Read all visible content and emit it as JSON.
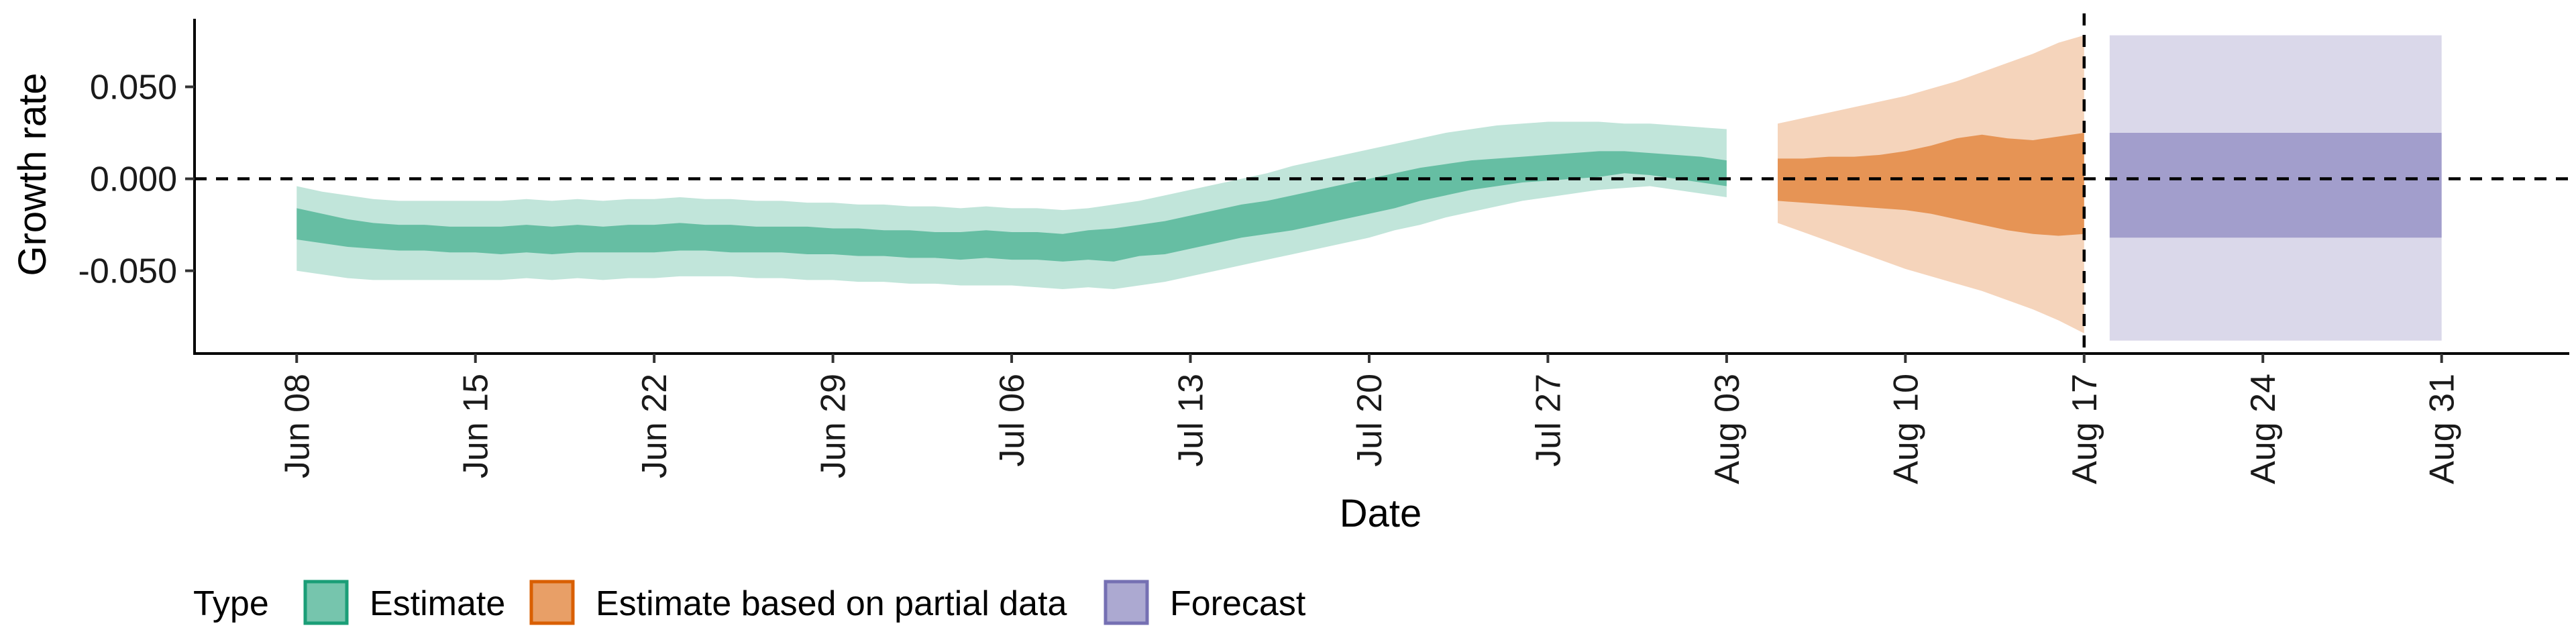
{
  "chart_data": {
    "type": "area",
    "xlabel": "Date",
    "ylabel": "Growth rate",
    "x_ticks": [
      "Jun 08",
      "Jun 15",
      "Jun 22",
      "Jun 29",
      "Jul 06",
      "Jul 13",
      "Jul 20",
      "Jul 27",
      "Aug 03",
      "Aug 10",
      "Aug 17",
      "Aug 24",
      "Aug 31"
    ],
    "y_ticks": [
      "0.050",
      "0.000",
      "-0.050"
    ],
    "y_tick_values": [
      0.05,
      0.0,
      -0.05
    ],
    "ylim": [
      -0.095,
      0.087
    ],
    "xlim": [
      "2020-06-04",
      "2020-09-05"
    ],
    "hline": 0.0,
    "vline": "2020-08-17",
    "legend": {
      "title": "Type",
      "position": "bottom-left",
      "items": [
        {
          "label": "Estimate",
          "color": "#1b9e77"
        },
        {
          "label": "Estimate based on partial data",
          "color": "#d95f02"
        },
        {
          "label": "Forecast",
          "color": "#7570b3"
        }
      ]
    },
    "series": [
      {
        "name": "Estimate",
        "color": "#1b9e77",
        "x": [
          "2020-06-08",
          "2020-06-09",
          "2020-06-10",
          "2020-06-11",
          "2020-06-12",
          "2020-06-13",
          "2020-06-14",
          "2020-06-15",
          "2020-06-16",
          "2020-06-17",
          "2020-06-18",
          "2020-06-19",
          "2020-06-20",
          "2020-06-21",
          "2020-06-22",
          "2020-06-23",
          "2020-06-24",
          "2020-06-25",
          "2020-06-26",
          "2020-06-27",
          "2020-06-28",
          "2020-06-29",
          "2020-06-30",
          "2020-07-01",
          "2020-07-02",
          "2020-07-03",
          "2020-07-04",
          "2020-07-05",
          "2020-07-06",
          "2020-07-07",
          "2020-07-08",
          "2020-07-09",
          "2020-07-10",
          "2020-07-11",
          "2020-07-12",
          "2020-07-13",
          "2020-07-14",
          "2020-07-15",
          "2020-07-16",
          "2020-07-17",
          "2020-07-18",
          "2020-07-19",
          "2020-07-20",
          "2020-07-21",
          "2020-07-22",
          "2020-07-23",
          "2020-07-24",
          "2020-07-25",
          "2020-07-26",
          "2020-07-27",
          "2020-07-28",
          "2020-07-29",
          "2020-07-30",
          "2020-07-31",
          "2020-08-01",
          "2020-08-02",
          "2020-08-03"
        ],
        "lower90": [
          -0.05,
          -0.052,
          -0.054,
          -0.055,
          -0.055,
          -0.055,
          -0.055,
          -0.055,
          -0.055,
          -0.054,
          -0.055,
          -0.054,
          -0.055,
          -0.054,
          -0.054,
          -0.053,
          -0.053,
          -0.053,
          -0.054,
          -0.054,
          -0.055,
          -0.055,
          -0.056,
          -0.056,
          -0.057,
          -0.057,
          -0.058,
          -0.058,
          -0.058,
          -0.059,
          -0.06,
          -0.059,
          -0.06,
          -0.058,
          -0.056,
          -0.053,
          -0.05,
          -0.047,
          -0.044,
          -0.041,
          -0.038,
          -0.035,
          -0.032,
          -0.028,
          -0.025,
          -0.021,
          -0.018,
          -0.015,
          -0.012,
          -0.01,
          -0.008,
          -0.006,
          -0.005,
          -0.004,
          -0.006,
          -0.008,
          -0.01
        ],
        "lower50": [
          -0.033,
          -0.035,
          -0.037,
          -0.038,
          -0.039,
          -0.039,
          -0.04,
          -0.04,
          -0.041,
          -0.04,
          -0.041,
          -0.04,
          -0.04,
          -0.04,
          -0.04,
          -0.039,
          -0.039,
          -0.04,
          -0.04,
          -0.04,
          -0.041,
          -0.041,
          -0.042,
          -0.042,
          -0.043,
          -0.043,
          -0.044,
          -0.043,
          -0.044,
          -0.044,
          -0.045,
          -0.044,
          -0.045,
          -0.042,
          -0.041,
          -0.038,
          -0.035,
          -0.032,
          -0.03,
          -0.028,
          -0.025,
          -0.022,
          -0.019,
          -0.016,
          -0.012,
          -0.009,
          -0.006,
          -0.004,
          -0.002,
          -0.001,
          0.0,
          0.001,
          0.003,
          0.002,
          0.0,
          -0.002,
          -0.004
        ],
        "upper50": [
          -0.016,
          -0.019,
          -0.022,
          -0.024,
          -0.025,
          -0.025,
          -0.026,
          -0.026,
          -0.026,
          -0.025,
          -0.026,
          -0.025,
          -0.026,
          -0.025,
          -0.025,
          -0.024,
          -0.025,
          -0.025,
          -0.026,
          -0.026,
          -0.026,
          -0.027,
          -0.027,
          -0.028,
          -0.028,
          -0.029,
          -0.029,
          -0.028,
          -0.029,
          -0.029,
          -0.03,
          -0.028,
          -0.027,
          -0.025,
          -0.023,
          -0.02,
          -0.017,
          -0.014,
          -0.012,
          -0.009,
          -0.006,
          -0.003,
          0.0,
          0.003,
          0.006,
          0.008,
          0.01,
          0.011,
          0.012,
          0.013,
          0.014,
          0.015,
          0.015,
          0.014,
          0.013,
          0.012,
          0.01
        ],
        "upper90": [
          -0.004,
          -0.007,
          -0.009,
          -0.011,
          -0.012,
          -0.012,
          -0.012,
          -0.012,
          -0.012,
          -0.011,
          -0.012,
          -0.011,
          -0.012,
          -0.011,
          -0.011,
          -0.01,
          -0.011,
          -0.011,
          -0.012,
          -0.012,
          -0.013,
          -0.013,
          -0.014,
          -0.014,
          -0.015,
          -0.015,
          -0.016,
          -0.015,
          -0.016,
          -0.016,
          -0.017,
          -0.016,
          -0.014,
          -0.012,
          -0.009,
          -0.006,
          -0.003,
          0.0,
          0.003,
          0.007,
          0.01,
          0.013,
          0.016,
          0.019,
          0.022,
          0.025,
          0.027,
          0.029,
          0.03,
          0.031,
          0.031,
          0.031,
          0.03,
          0.03,
          0.029,
          0.028,
          0.027
        ]
      },
      {
        "name": "Estimate based on partial data",
        "color": "#d95f02",
        "x": [
          "2020-08-05",
          "2020-08-06",
          "2020-08-07",
          "2020-08-08",
          "2020-08-09",
          "2020-08-10",
          "2020-08-11",
          "2020-08-12",
          "2020-08-13",
          "2020-08-14",
          "2020-08-15",
          "2020-08-16",
          "2020-08-17"
        ],
        "lower90": [
          -0.024,
          -0.029,
          -0.034,
          -0.039,
          -0.044,
          -0.049,
          -0.053,
          -0.057,
          -0.061,
          -0.066,
          -0.071,
          -0.077,
          -0.084
        ],
        "lower50": [
          -0.012,
          -0.013,
          -0.014,
          -0.015,
          -0.016,
          -0.017,
          -0.019,
          -0.022,
          -0.025,
          -0.028,
          -0.03,
          -0.031,
          -0.03
        ],
        "upper50": [
          0.011,
          0.011,
          0.012,
          0.012,
          0.013,
          0.015,
          0.018,
          0.022,
          0.024,
          0.022,
          0.021,
          0.023,
          0.025
        ],
        "upper90": [
          0.03,
          0.033,
          0.036,
          0.039,
          0.042,
          0.045,
          0.049,
          0.053,
          0.058,
          0.063,
          0.068,
          0.074,
          0.078
        ]
      },
      {
        "name": "Forecast",
        "color": "#7570b3",
        "x": [
          "2020-08-18",
          "2020-08-31"
        ],
        "lower90": [
          -0.088,
          -0.088
        ],
        "lower50": [
          -0.032,
          -0.032
        ],
        "upper50": [
          0.025,
          0.025
        ],
        "upper90": [
          0.078,
          0.078
        ]
      }
    ]
  }
}
